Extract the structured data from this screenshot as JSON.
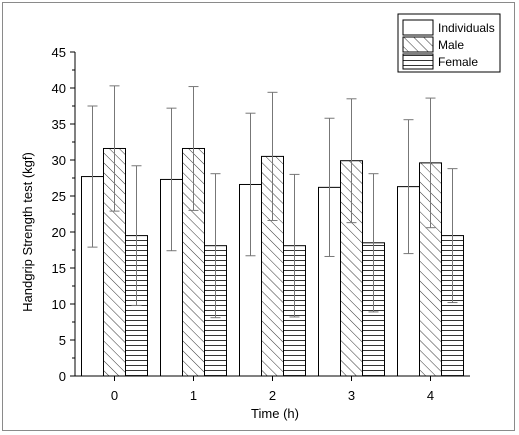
{
  "chart_data": {
    "type": "bar",
    "categories": [
      "0",
      "1",
      "2",
      "3",
      "4"
    ],
    "xlabel": "Time (h)",
    "ylabel": "Handgrip Strength test (kgf)",
    "ylim": [
      0,
      45
    ],
    "yticks": [
      "0",
      "5",
      "10",
      "15",
      "20",
      "25",
      "30",
      "35",
      "40",
      "45"
    ],
    "legend_position": "top-right",
    "grid": false,
    "series": [
      {
        "name": "Individuals",
        "pattern": "none",
        "values": [
          27.7,
          27.3,
          26.6,
          26.2,
          26.3
        ],
        "errors": [
          9.8,
          9.9,
          9.9,
          9.6,
          9.3
        ]
      },
      {
        "name": "Male",
        "pattern": "diagonal",
        "values": [
          31.6,
          31.6,
          30.5,
          29.9,
          29.6
        ],
        "errors": [
          8.7,
          8.6,
          8.9,
          8.6,
          9.0
        ]
      },
      {
        "name": "Female",
        "pattern": "horizontal",
        "values": [
          19.5,
          18.1,
          18.1,
          18.5,
          19.5
        ],
        "errors": [
          9.7,
          10.0,
          9.9,
          9.6,
          9.3
        ]
      }
    ]
  }
}
